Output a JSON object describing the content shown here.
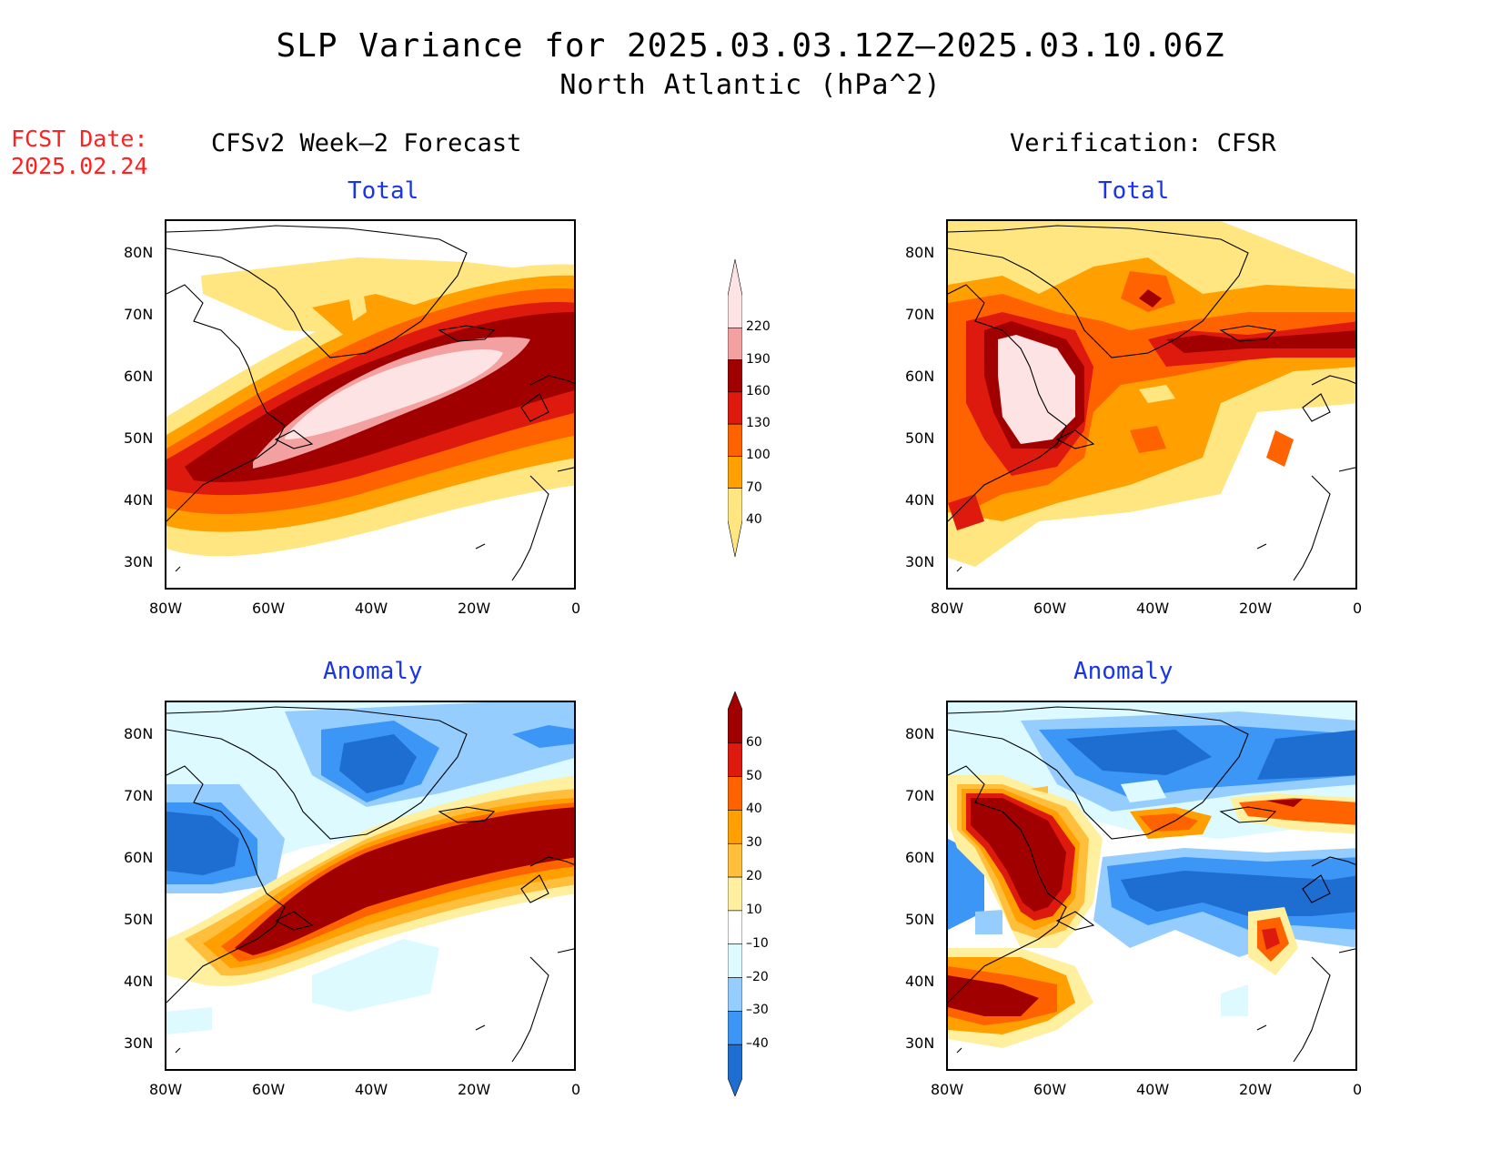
{
  "header": {
    "title": "SLP Variance for 2025.03.03.12Z–2025.03.10.06Z",
    "subtitle": "North Atlantic (hPa^2)",
    "fcst_date_label": "FCST Date:",
    "fcst_date_value": "2025.02.24",
    "left_column_title": "CFSv2 Week–2 Forecast",
    "right_column_title": "Verification: CFSR"
  },
  "panels": {
    "top_left_label": "Total",
    "top_right_label": "Total",
    "bottom_left_label": "Anomaly",
    "bottom_right_label": "Anomaly"
  },
  "axes": {
    "lat_ticks": [
      "80N",
      "70N",
      "60N",
      "50N",
      "40N",
      "30N"
    ],
    "lon_ticks": [
      "80W",
      "60W",
      "40W",
      "20W",
      "0"
    ]
  },
  "colorbars": {
    "total": {
      "labels": [
        "220",
        "190",
        "160",
        "130",
        "100",
        "70",
        "40"
      ],
      "colors": [
        "#fde3e3",
        "#f2a0a0",
        "#a00000",
        "#de1a0f",
        "#ff6300",
        "#ffa000",
        "#ffe680"
      ]
    },
    "anomaly": {
      "labels": [
        "60",
        "50",
        "40",
        "30",
        "20",
        "10",
        "–10",
        "–20",
        "–30",
        "–40"
      ],
      "colors": [
        "#a00000",
        "#de1a0f",
        "#ff6300",
        "#ffa000",
        "#ffbe3c",
        "#fff0a0",
        "#ffffff",
        "#dcfaff",
        "#96cdff",
        "#3c96f5",
        "#1e6ed2"
      ]
    }
  },
  "colors": {
    "title_red": "#ff2020",
    "subtitle_blue": "#1a35e6"
  }
}
